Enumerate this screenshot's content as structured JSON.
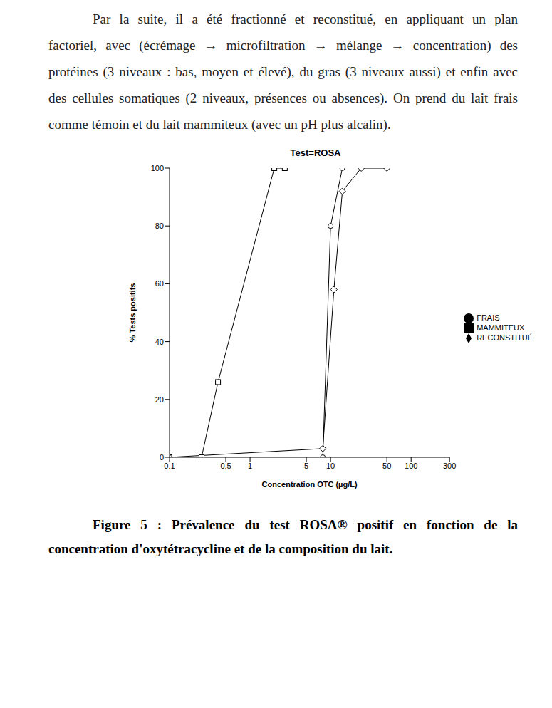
{
  "text": {
    "lines": [
      "Par la suite, il a été fractionné et reconstitué, en appliquant un plan",
      "factoriel, avec (écrémage → microfiltration → mélange → concentration) des",
      "protéines (3 niveaux : bas, moyen et élevé), du gras (3 niveaux aussi) et enfin avec",
      "des cellules somatiques (2 niveaux, présences ou absences). On prend du lait frais",
      "comme témoin et du lait mammiteux (avec un pH plus alcalin)."
    ]
  },
  "chart_data": {
    "type": "line",
    "title": "Test=ROSA",
    "x_label": "Concentration OTC (µg/L)",
    "y_label": "% Tests positifs",
    "log": "x",
    "xlim": [
      0.1,
      300
    ],
    "xticks": [
      0.1,
      0.5,
      1,
      5,
      10,
      50,
      100,
      300
    ],
    "ylim": [
      0,
      100
    ],
    "yticks": [
      0,
      20,
      40,
      60,
      80,
      100
    ],
    "legend": "right",
    "series": [
      {
        "name": "FRAIS",
        "color": "#000000",
        "marker": "circle",
        "x": [
          0.1,
          8,
          10,
          14
        ],
        "values": [
          0,
          0,
          80,
          100
        ]
      },
      {
        "name": "MAMMITEUX",
        "color": "#000000",
        "marker": "square",
        "x": [
          0.1,
          0.25,
          0.4,
          2,
          2.7
        ],
        "values": [
          0,
          0,
          26,
          100,
          100
        ]
      },
      {
        "name": "RECONSTITUÉ",
        "color": "#000000",
        "marker": "diamond",
        "x": [
          0.1,
          8,
          11,
          14,
          24,
          50
        ],
        "values": [
          0,
          3,
          58,
          92,
          100,
          100
        ]
      }
    ]
  },
  "caption": "Figure 5 : Prévalence du test ROSA® positif en fonction de la concentration d'oxytétracycline et de la composition du lait."
}
